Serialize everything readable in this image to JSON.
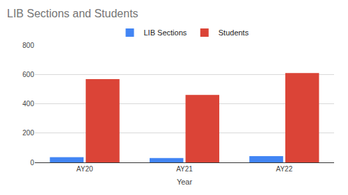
{
  "chart_data": {
    "type": "bar",
    "title": "LIB Sections and Students",
    "x_label": "Year",
    "categories": [
      "AY20",
      "AY21",
      "AY22"
    ],
    "series": [
      {
        "name": "LIB Sections",
        "color": "#4285f4",
        "values": [
          35,
          30,
          43
        ]
      },
      {
        "name": "Students",
        "color": "#db4437",
        "values": [
          568,
          460,
          610
        ]
      }
    ],
    "ylim": [
      0,
      800
    ],
    "yticks": [
      0,
      200,
      400,
      600,
      800
    ],
    "grid": true,
    "legend": "top"
  }
}
